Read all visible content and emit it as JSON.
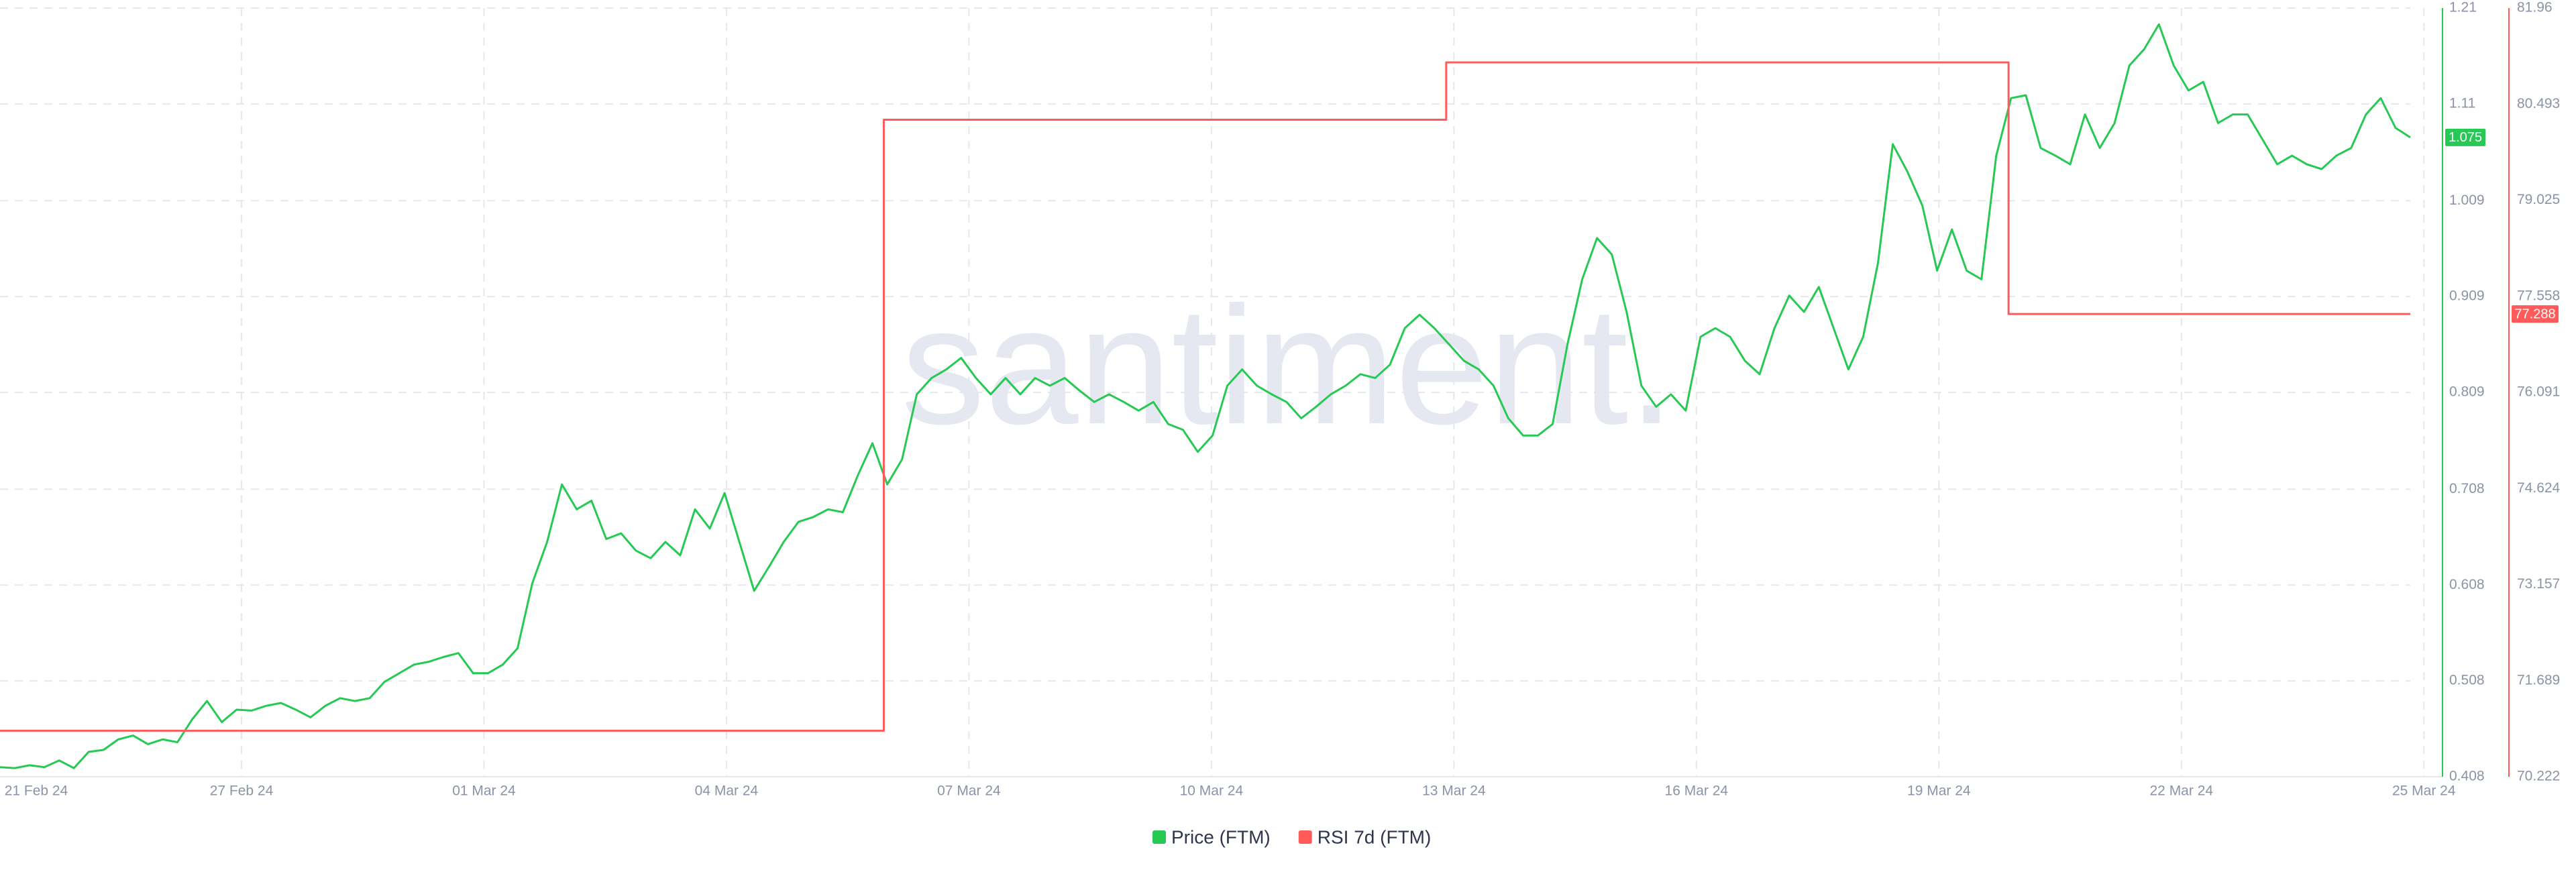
{
  "chart_data": {
    "type": "line",
    "watermark": "santiment.",
    "x_labels": [
      "21 Feb 24",
      "27 Feb 24",
      "01 Mar 24",
      "04 Mar 24",
      "07 Mar 24",
      "10 Mar 24",
      "13 Mar 24",
      "16 Mar 24",
      "19 Mar 24",
      "22 Mar 24",
      "25 Mar 24"
    ],
    "ylim": [
      0.408,
      1.21
    ],
    "yticks": [
      0.408,
      0.508,
      0.608,
      0.708,
      0.809,
      0.909,
      1.009,
      1.11,
      1.21
    ],
    "y2lim": [
      70.222,
      81.96
    ],
    "y2ticks": [
      70.222,
      71.689,
      73.157,
      74.624,
      76.091,
      77.558,
      79.025,
      80.493,
      81.96
    ],
    "grid": true,
    "legend": "bottom",
    "series": [
      {
        "name": "Price (FTM)",
        "color": "#26c953",
        "values": [
          0.418,
          0.417,
          0.42,
          0.418,
          0.425,
          0.417,
          0.434,
          0.436,
          0.447,
          0.451,
          0.442,
          0.447,
          0.444,
          0.468,
          0.487,
          0.465,
          0.478,
          0.477,
          0.482,
          0.485,
          0.478,
          0.47,
          0.482,
          0.49,
          0.487,
          0.49,
          0.507,
          0.516,
          0.525,
          0.528,
          0.533,
          0.537,
          0.516,
          0.516,
          0.525,
          0.542,
          0.61,
          0.653,
          0.713,
          0.687,
          0.696,
          0.656,
          0.662,
          0.644,
          0.636,
          0.653,
          0.639,
          0.687,
          0.667,
          0.704,
          0.653,
          0.602,
          0.627,
          0.653,
          0.674,
          0.679,
          0.687,
          0.684,
          0.722,
          0.756,
          0.713,
          0.739,
          0.807,
          0.824,
          0.833,
          0.845,
          0.824,
          0.807,
          0.824,
          0.807,
          0.824,
          0.816,
          0.824,
          0.811,
          0.799,
          0.807,
          0.799,
          0.79,
          0.799,
          0.776,
          0.77,
          0.747,
          0.764,
          0.816,
          0.833,
          0.816,
          0.807,
          0.799,
          0.782,
          0.794,
          0.807,
          0.816,
          0.828,
          0.824,
          0.838,
          0.876,
          0.89,
          0.876,
          0.859,
          0.842,
          0.833,
          0.816,
          0.782,
          0.764,
          0.764,
          0.776,
          0.859,
          0.927,
          0.97,
          0.953,
          0.893,
          0.816,
          0.794,
          0.807,
          0.79,
          0.867,
          0.876,
          0.867,
          0.842,
          0.828,
          0.876,
          0.91,
          0.893,
          0.919,
          0.876,
          0.833,
          0.867,
          0.944,
          1.068,
          1.039,
          1.004,
          0.936,
          0.979,
          0.936,
          0.927,
          1.056,
          1.116,
          1.119,
          1.064,
          1.056,
          1.047,
          1.099,
          1.064,
          1.09,
          1.15,
          1.167,
          1.193,
          1.15,
          1.124,
          1.133,
          1.09,
          1.099,
          1.099,
          1.073,
          1.047,
          1.056,
          1.047,
          1.042,
          1.056,
          1.064,
          1.099,
          1.116,
          1.085,
          1.075
        ]
      },
      {
        "name": "RSI 7d (FTM)",
        "color": "#ff5b5b",
        "axis": "y2",
        "values": [
          70.925,
          70.925,
          70.925,
          70.925,
          70.925,
          70.925,
          70.925,
          70.925,
          70.925,
          70.925,
          70.925,
          80.255,
          80.255,
          80.255,
          80.255,
          80.255,
          80.255,
          80.255,
          81.13,
          81.13,
          81.13,
          81.13,
          81.13,
          81.13,
          81.13,
          77.288,
          77.288,
          77.288,
          77.288,
          77.288
        ]
      }
    ]
  }
}
